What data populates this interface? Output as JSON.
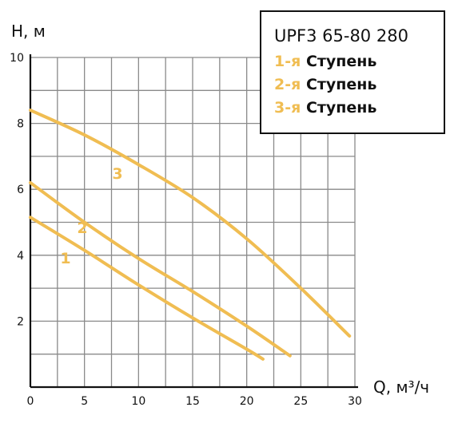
{
  "chart_data": {
    "type": "line",
    "xlabel": "Q, м³/ч",
    "ylabel": "H, м",
    "xlim": [
      0,
      30
    ],
    "ylim": [
      0,
      10
    ],
    "x_ticks": [
      0,
      5,
      10,
      15,
      20,
      25,
      30
    ],
    "y_ticks": [
      2,
      4,
      6,
      8,
      10
    ],
    "grid": true,
    "color": "#f0bd52",
    "series": [
      {
        "label": "1",
        "x": [
          0,
          5,
          10,
          15,
          20,
          21.5
        ],
        "y": [
          5.15,
          4.15,
          3.1,
          2.1,
          1.15,
          0.85
        ]
      },
      {
        "label": "2",
        "x": [
          0,
          5,
          10,
          15,
          20,
          24
        ],
        "y": [
          6.2,
          5.0,
          3.9,
          2.9,
          1.85,
          0.95
        ]
      },
      {
        "label": "3",
        "x": [
          0,
          5,
          10,
          15,
          20,
          25,
          29.5
        ],
        "y": [
          8.4,
          7.65,
          6.75,
          5.75,
          4.5,
          3.0,
          1.55
        ]
      }
    ],
    "legend": {
      "title": "UPF3 65-80 280",
      "position": "top-right",
      "entries": [
        {
          "prefix": "1-я",
          "stage": "Ступень"
        },
        {
          "prefix": "2-я",
          "stage": "Ступень"
        },
        {
          "prefix": "3-я",
          "stage": "Ступень"
        }
      ]
    }
  }
}
